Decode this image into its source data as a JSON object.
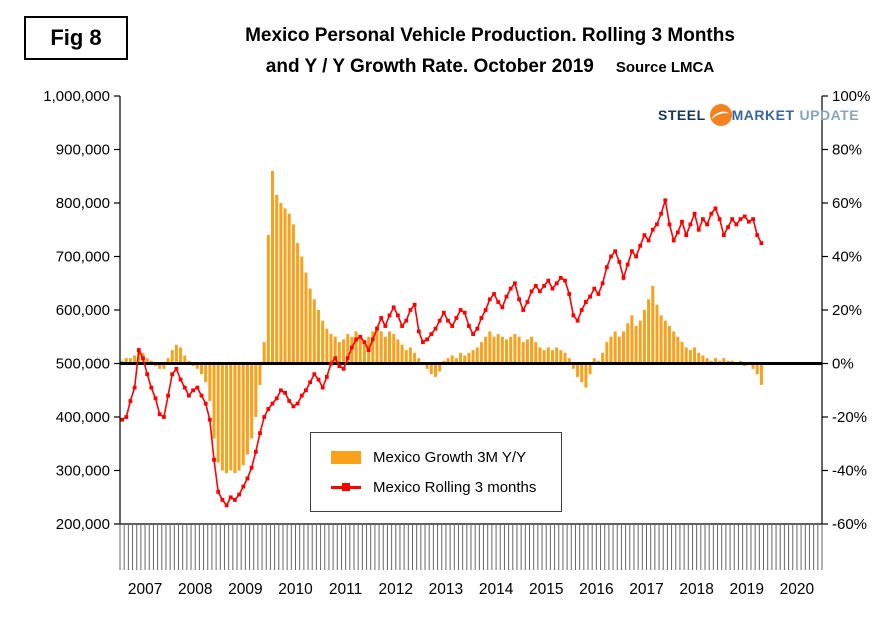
{
  "figure": {
    "label": "Fig 8"
  },
  "title": {
    "line1": "Mexico Personal Vehicle Production. Rolling 3 Months",
    "line2": "and Y / Y Growth Rate. October 2019",
    "source": "Source LMCA"
  },
  "logo": {
    "steel": "STEEL",
    "market": "MARKET",
    "update": "UPDATE"
  },
  "legend": {
    "bar_label": "Mexico Growth 3M Y/Y",
    "line_label": "Mexico Rolling 3 months"
  },
  "chart_data": {
    "type": "bar+line combo",
    "title": "Mexico Personal Vehicle Production. Rolling 3 Months and Y / Y Growth Rate. October 2019",
    "source": "Source LMCA",
    "legend_position": "inside-bottom-center",
    "grid": "off",
    "start_month": "2007-01",
    "end_month": "2019-10",
    "x_axis": {
      "years": [
        "2007",
        "2008",
        "2009",
        "2010",
        "2011",
        "2012",
        "2013",
        "2014",
        "2015",
        "2016",
        "2017",
        "2018",
        "2019",
        "2020"
      ],
      "months_per_year": 12
    },
    "left_axis": {
      "series": "Mexico Rolling 3 months",
      "min": 200000,
      "max": 1000000,
      "tick_labels": [
        "1,000,000",
        "900,000",
        "800,000",
        "700,000",
        "600,000",
        "500,000",
        "400,000",
        "300,000",
        "200,000"
      ]
    },
    "right_axis": {
      "series": "Mexico Growth 3M Y/Y",
      "min": -60,
      "max": 100,
      "tick_labels": [
        "100%",
        "80%",
        "60%",
        "40%",
        "20%",
        "0%",
        "-20%",
        "-40%",
        "-60%"
      ]
    },
    "baseline": {
      "left_value": 500000,
      "right_value_pct": 0
    },
    "colors": {
      "bar": "#F9A11B",
      "line": "#FF0000",
      "baseline": "#000000"
    },
    "series": [
      {
        "name": "Mexico Growth 3M Y/Y",
        "type": "bar",
        "axis": "right",
        "unit": "percent",
        "values": [
          1,
          2,
          2,
          3,
          5,
          4,
          2,
          1,
          -1,
          -2,
          -2,
          2,
          5,
          7,
          6,
          3,
          1,
          -1,
          -2,
          -4,
          -7,
          -14,
          -28,
          -37,
          -40,
          -41,
          -40,
          -41,
          -40,
          -38,
          -34,
          -28,
          -20,
          -8,
          8,
          48,
          72,
          63,
          60,
          58,
          56,
          52,
          45,
          40,
          34,
          28,
          24,
          20,
          16,
          13,
          11,
          10,
          8,
          9,
          11,
          10,
          12,
          10,
          8,
          10,
          12,
          14,
          12,
          10,
          12,
          11,
          9,
          7,
          5,
          6,
          4,
          2,
          0,
          -2,
          -4,
          -5,
          -3,
          1,
          2,
          3,
          2,
          4,
          3,
          4,
          5,
          6,
          8,
          10,
          12,
          10,
          11,
          10,
          9,
          10,
          11,
          10,
          8,
          9,
          10,
          8,
          6,
          5,
          6,
          5,
          6,
          5,
          4,
          2,
          -2,
          -5,
          -7,
          -9,
          -4,
          2,
          1,
          4,
          8,
          10,
          12,
          10,
          12,
          15,
          18,
          14,
          16,
          20,
          24,
          29,
          22,
          18,
          16,
          14,
          12,
          10,
          8,
          6,
          5,
          6,
          4,
          3,
          2,
          1,
          2,
          1,
          2,
          1,
          1,
          0,
          1,
          -1,
          0,
          -2,
          -4,
          -8
        ]
      },
      {
        "name": "Mexico Rolling 3 months",
        "type": "line",
        "axis": "left",
        "unit": "vehicles",
        "values": [
          395000,
          400000,
          430000,
          455000,
          525000,
          510000,
          480000,
          455000,
          435000,
          405000,
          400000,
          440000,
          480000,
          490000,
          470000,
          455000,
          440000,
          450000,
          455000,
          440000,
          425000,
          395000,
          320000,
          260000,
          245000,
          235000,
          250000,
          245000,
          255000,
          270000,
          285000,
          305000,
          335000,
          370000,
          400000,
          415000,
          425000,
          435000,
          450000,
          445000,
          430000,
          420000,
          425000,
          440000,
          450000,
          465000,
          480000,
          470000,
          455000,
          475000,
          500000,
          510000,
          495000,
          490000,
          510000,
          530000,
          545000,
          550000,
          540000,
          525000,
          545000,
          565000,
          585000,
          570000,
          590000,
          605000,
          590000,
          570000,
          580000,
          600000,
          610000,
          560000,
          540000,
          545000,
          555000,
          565000,
          580000,
          595000,
          580000,
          570000,
          585000,
          600000,
          595000,
          570000,
          555000,
          565000,
          585000,
          600000,
          620000,
          630000,
          615000,
          605000,
          625000,
          640000,
          650000,
          620000,
          600000,
          615000,
          635000,
          645000,
          635000,
          645000,
          655000,
          640000,
          650000,
          660000,
          655000,
          630000,
          590000,
          580000,
          600000,
          615000,
          625000,
          640000,
          630000,
          650000,
          680000,
          700000,
          710000,
          690000,
          660000,
          685000,
          710000,
          700000,
          720000,
          740000,
          730000,
          750000,
          760000,
          780000,
          805000,
          760000,
          730000,
          745000,
          765000,
          740000,
          760000,
          780000,
          750000,
          770000,
          760000,
          780000,
          790000,
          770000,
          740000,
          755000,
          770000,
          760000,
          770000,
          775000,
          765000,
          770000,
          740000,
          725000
        ]
      }
    ]
  }
}
